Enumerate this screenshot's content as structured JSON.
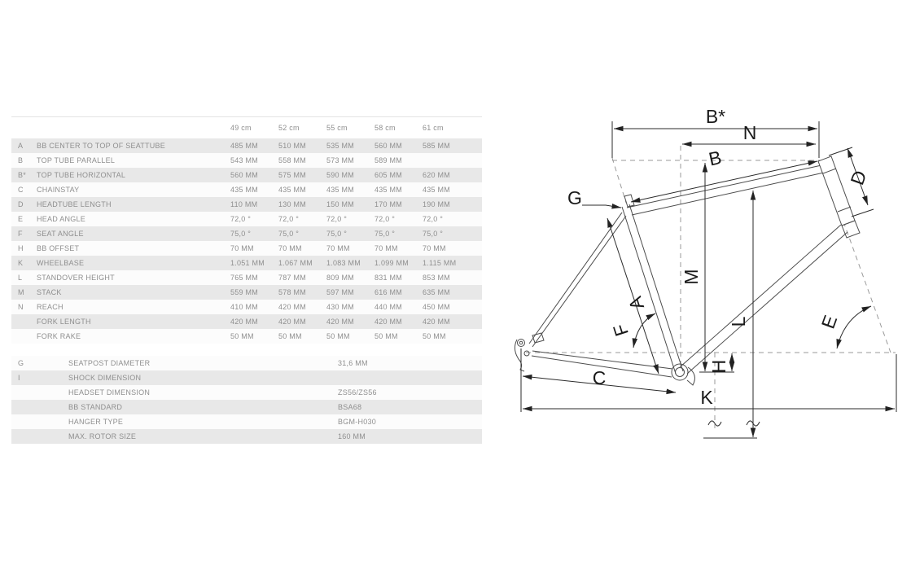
{
  "page": {
    "background": "#ffffff"
  },
  "geometry_table": {
    "stripe_color": "#e8e8e8",
    "row_color": "#fcfcfc",
    "text_color": "#8f8f8f",
    "columns": [
      "49 cm",
      "52 cm",
      "55 cm",
      "58 cm",
      "61 cm"
    ],
    "rows": [
      {
        "letter": "A",
        "label": "BB CENTER TO TOP OF SEATTUBE",
        "values": [
          "485 MM",
          "510 MM",
          "535 MM",
          "560 MM",
          "585 MM"
        ]
      },
      {
        "letter": "B",
        "label": "TOP TUBE PARALLEL",
        "values": [
          "543 MM",
          "558 MM",
          "573 MM",
          "589 MM",
          ""
        ]
      },
      {
        "letter": "B*",
        "label": "TOP TUBE HORIZONTAL",
        "values": [
          "560 MM",
          "575 MM",
          "590 MM",
          "605 MM",
          "620 MM"
        ]
      },
      {
        "letter": "C",
        "label": "CHAINSTAY",
        "values": [
          "435 MM",
          "435 MM",
          "435 MM",
          "435 MM",
          "435 MM"
        ]
      },
      {
        "letter": "D",
        "label": "HEADTUBE LENGTH",
        "values": [
          "110 MM",
          "130 MM",
          "150 MM",
          "170 MM",
          "190 MM"
        ]
      },
      {
        "letter": "E",
        "label": "HEAD ANGLE",
        "values": [
          "72,0 °",
          "72,0 °",
          "72,0 °",
          "72,0 °",
          "72,0 °"
        ]
      },
      {
        "letter": "F",
        "label": "SEAT ANGLE",
        "values": [
          "75,0 °",
          "75,0 °",
          "75,0 °",
          "75,0 °",
          "75,0 °"
        ]
      },
      {
        "letter": "H",
        "label": "BB OFFSET",
        "values": [
          "70 MM",
          "70 MM",
          "70 MM",
          "70 MM",
          "70 MM"
        ]
      },
      {
        "letter": "K",
        "label": "WHEELBASE",
        "values": [
          "1.051 MM",
          "1.067 MM",
          "1.083 MM",
          "1.099 MM",
          "1.115 MM"
        ]
      },
      {
        "letter": "L",
        "label": "STANDOVER HEIGHT",
        "values": [
          "765 MM",
          "787 MM",
          "809 MM",
          "831 MM",
          "853 MM"
        ]
      },
      {
        "letter": "M",
        "label": "STACK",
        "values": [
          "559 MM",
          "578 MM",
          "597 MM",
          "616 MM",
          "635 MM"
        ]
      },
      {
        "letter": "N",
        "label": "REACH",
        "values": [
          "410 MM",
          "420 MM",
          "430 MM",
          "440 MM",
          "450 MM"
        ]
      },
      {
        "letter": "",
        "label": "FORK LENGTH",
        "values": [
          "420 MM",
          "420 MM",
          "420 MM",
          "420 MM",
          "420 MM"
        ]
      },
      {
        "letter": "",
        "label": "FORK RAKE",
        "values": [
          "50 MM",
          "50 MM",
          "50 MM",
          "50 MM",
          "50 MM"
        ]
      }
    ]
  },
  "spec_table": {
    "rows": [
      {
        "letter": "G",
        "label": "SEATPOST DIAMETER",
        "value": "31,6 MM"
      },
      {
        "letter": "I",
        "label": "SHOCK DIMENSION",
        "value": ""
      },
      {
        "letter": "",
        "label": "HEADSET DIMENSION",
        "value": "ZS56/ZS56"
      },
      {
        "letter": "",
        "label": "BB STANDARD",
        "value": "BSA68"
      },
      {
        "letter": "",
        "label": "HANGER TYPE",
        "value": "BGM-H030"
      },
      {
        "letter": "",
        "label": "MAX. ROTOR SIZE",
        "value": "160 MM"
      }
    ]
  },
  "diagram": {
    "labels": {
      "bstar": "B*",
      "n": "N",
      "b": "B",
      "d": "D",
      "g": "G",
      "m": "M",
      "a": "A",
      "f": "F",
      "l": "L",
      "e": "E",
      "c": "C",
      "h": "H",
      "k": "K"
    }
  }
}
